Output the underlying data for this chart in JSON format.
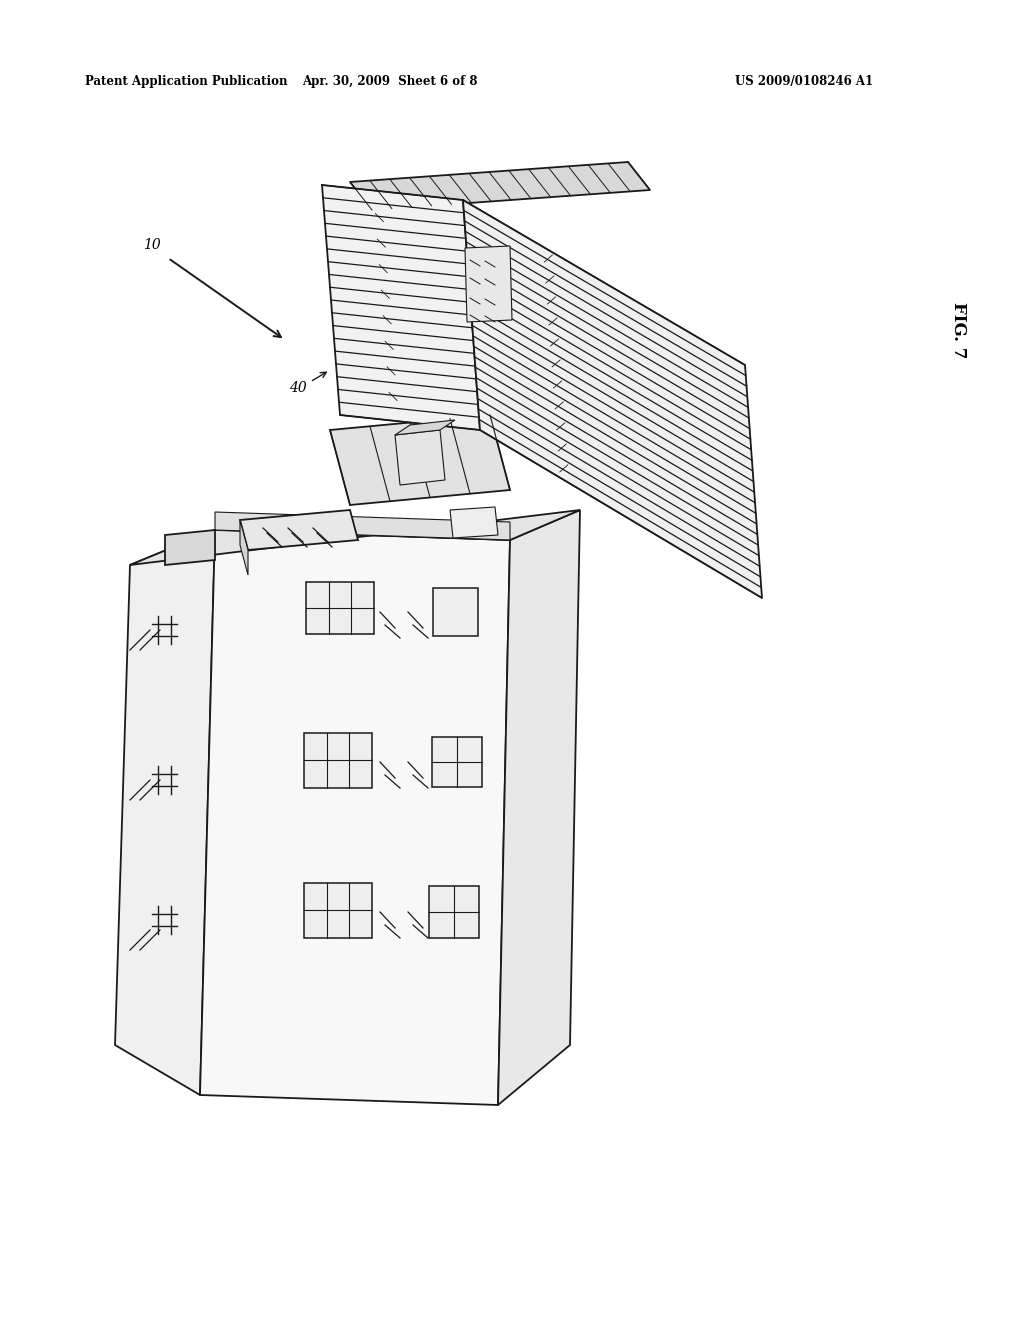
{
  "title_left": "Patent Application Publication",
  "title_mid": "Apr. 30, 2009  Sheet 6 of 8",
  "title_right": "US 2009/0108246 A1",
  "fig_label": "FIG. 7",
  "background_color": "#ffffff",
  "line_color": "#1a1a1a",
  "header_fontsize": 8.5,
  "fig_label_fontsize": 12,
  "ref_fontsize": 10
}
